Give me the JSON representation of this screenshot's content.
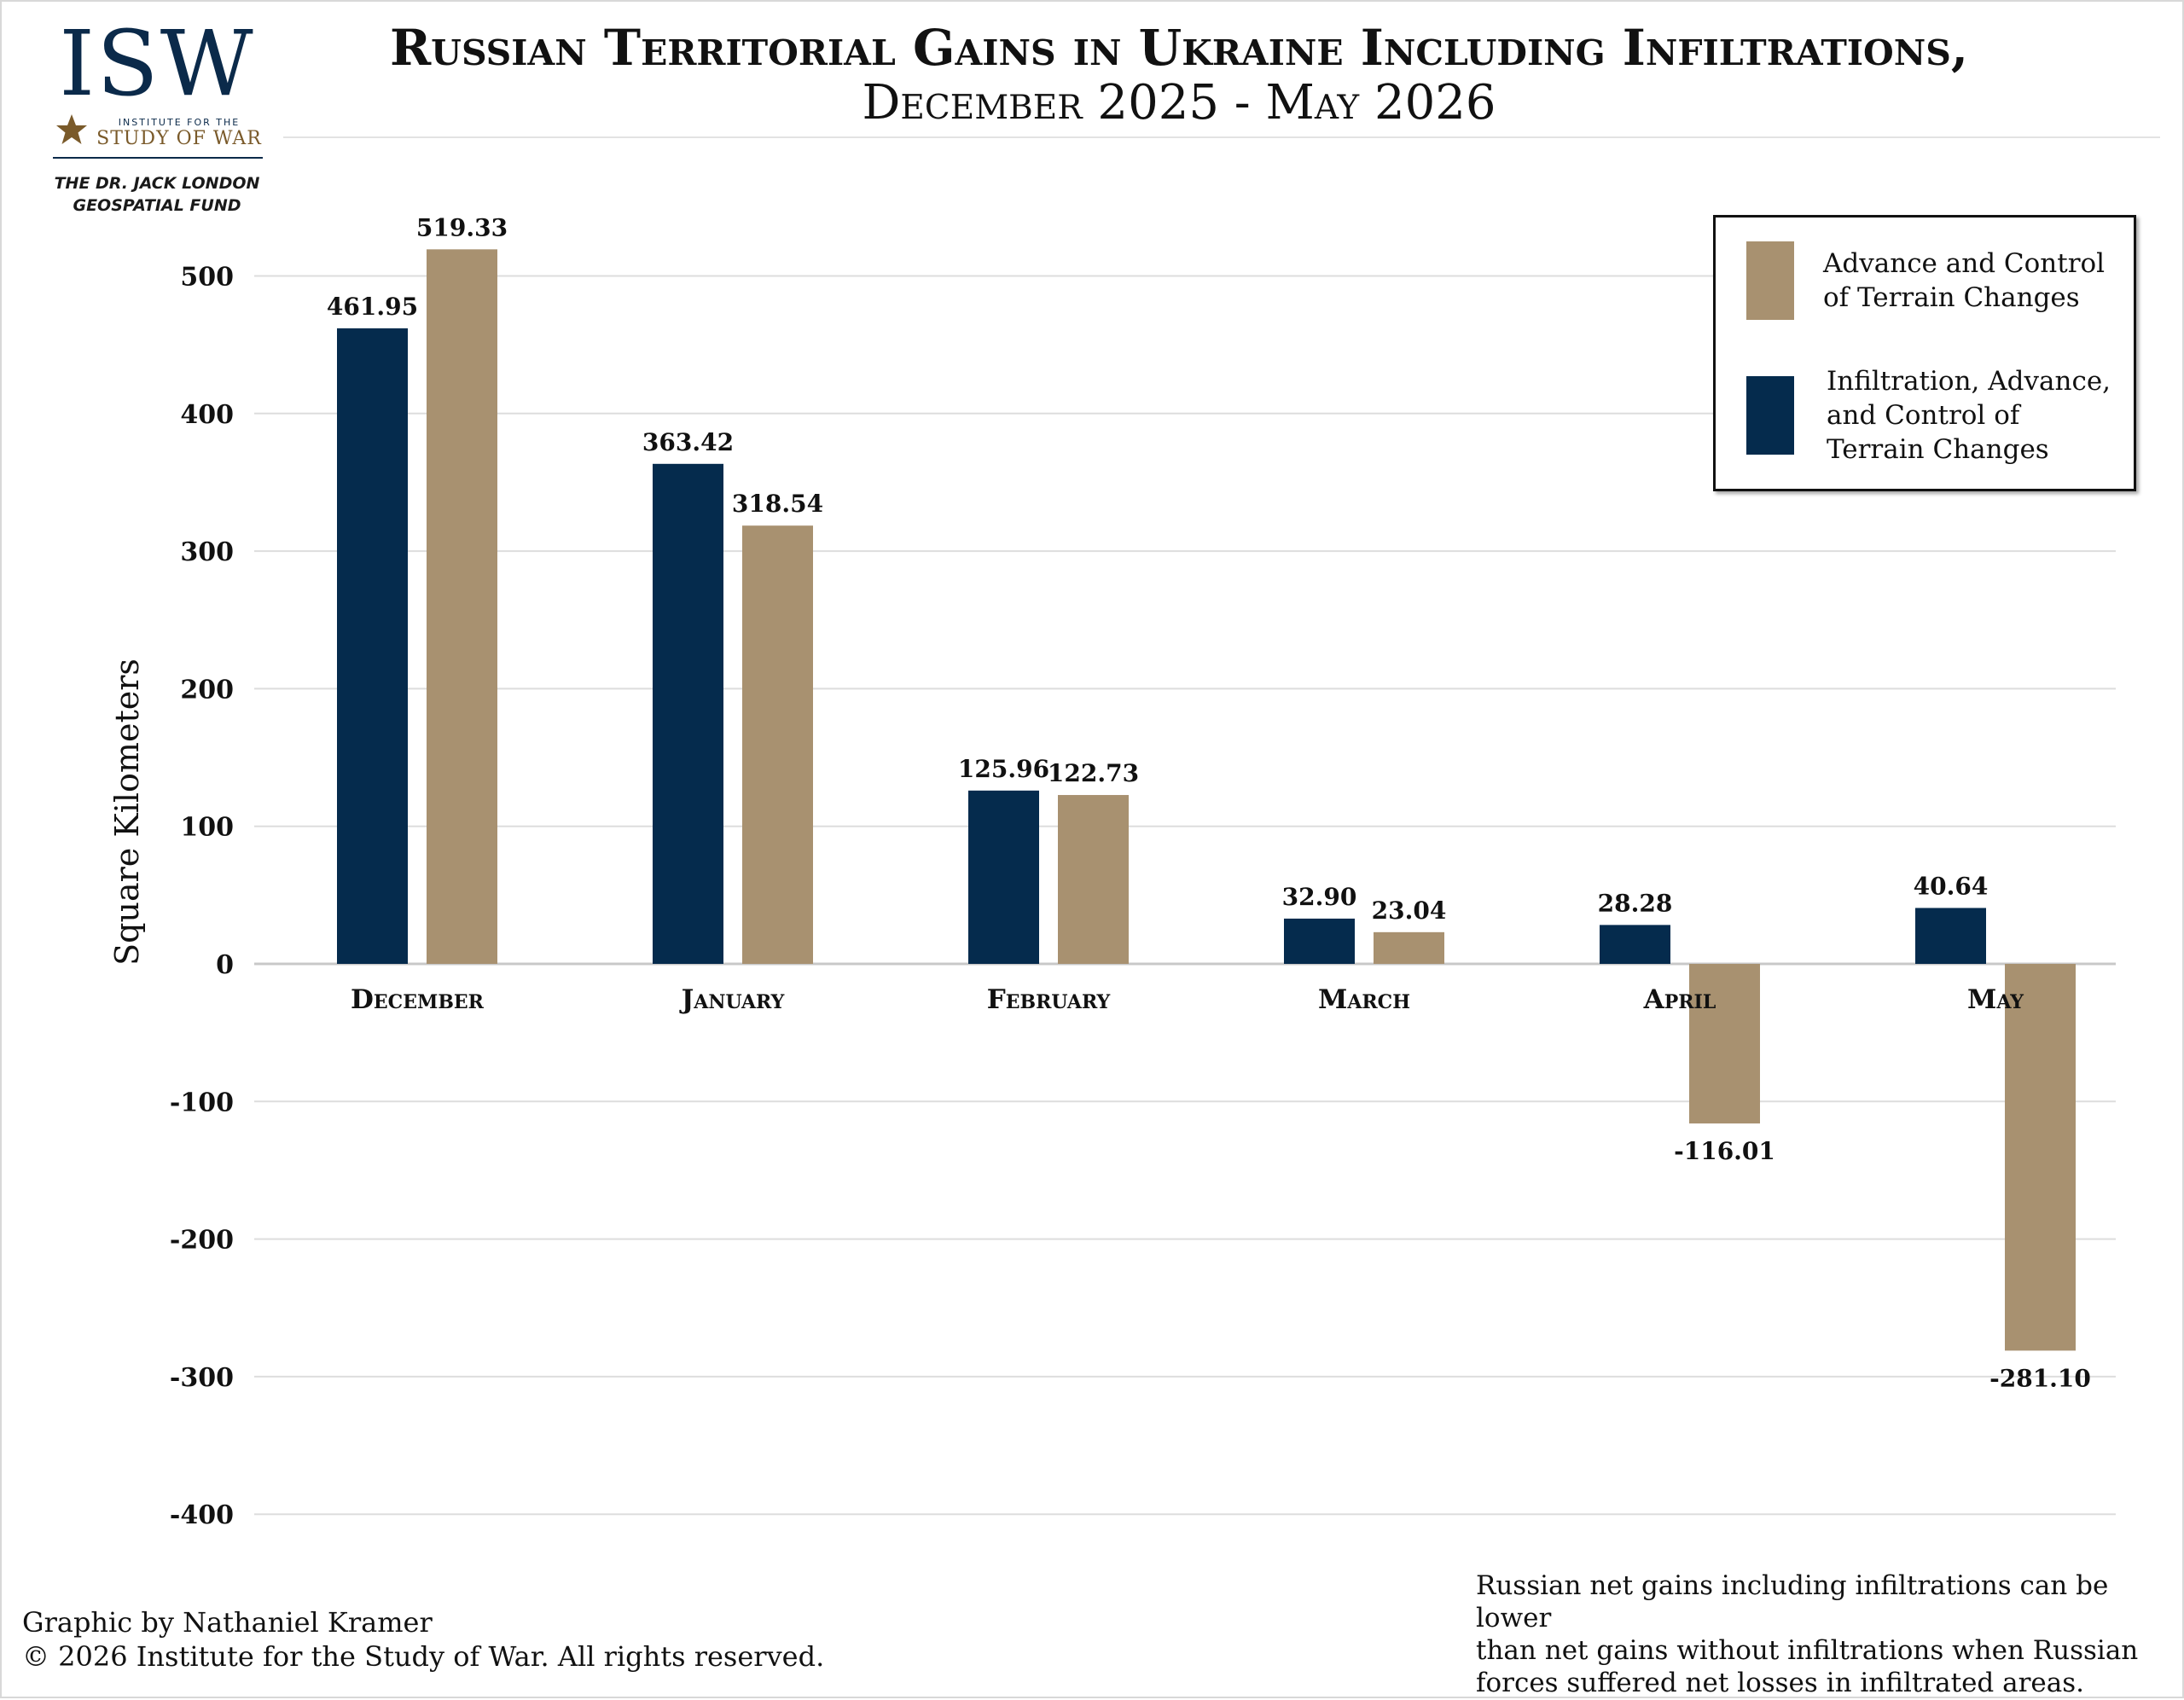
{
  "logo": {
    "main": "ISW",
    "sub_line1": "INSTITUTE FOR THE",
    "sub_line2": "STUDY OF WAR"
  },
  "fund": {
    "line1": "THE DR. JACK LONDON",
    "line2": "GEOSPATIAL FUND"
  },
  "colors": {
    "navy": "#052b4d",
    "tan": "#a89170",
    "grid": "#dddddd"
  },
  "chart_data": {
    "type": "bar",
    "title": "Russian Territorial Gains in Ukraine Including Infiltrations,",
    "subtitle": "December 2025 - May 2026",
    "ylabel": "Square Kilometers",
    "xlabel": "",
    "ylim": [
      -400,
      500
    ],
    "yticks": [
      500,
      400,
      300,
      200,
      100,
      0,
      -100,
      -200,
      -300,
      -400
    ],
    "grid": true,
    "legend_position": "top-right",
    "categories": [
      "December",
      "January",
      "February",
      "March",
      "April",
      "May"
    ],
    "series": [
      {
        "name": "Infiltration, Advance, and Control of Terrain Changes",
        "color": "#052b4d",
        "values": [
          461.95,
          363.42,
          125.96,
          32.9,
          28.28,
          40.64
        ],
        "labels": [
          "461.95",
          "363.42",
          "125.96",
          "32.90",
          "28.28",
          "40.64"
        ]
      },
      {
        "name": "Advance and Control of Terrain Changes",
        "color": "#a89170",
        "values": [
          519.33,
          318.54,
          122.73,
          23.04,
          -116.01,
          -281.1
        ],
        "labels": [
          "519.33",
          "318.54",
          "122.73",
          "23.04",
          "-116.01",
          "-281.10"
        ]
      }
    ]
  },
  "legend": {
    "tan_line1": "Advance and Control",
    "tan_line2": "of Terrain Changes",
    "navy_line1": "Infiltration, Advance,",
    "navy_line2": "and Control of",
    "navy_line3": "Terrain Changes"
  },
  "footer": {
    "credit_line1": "Graphic by Nathaniel Kramer",
    "credit_line2": "© 2026 Institute for the Study of War. All rights reserved.",
    "note_line1": "Russian net gains including infiltrations can be lower",
    "note_line2": "than net gains without infiltrations when Russian",
    "note_line3": "forces suffered net losses in infiltrated areas."
  }
}
